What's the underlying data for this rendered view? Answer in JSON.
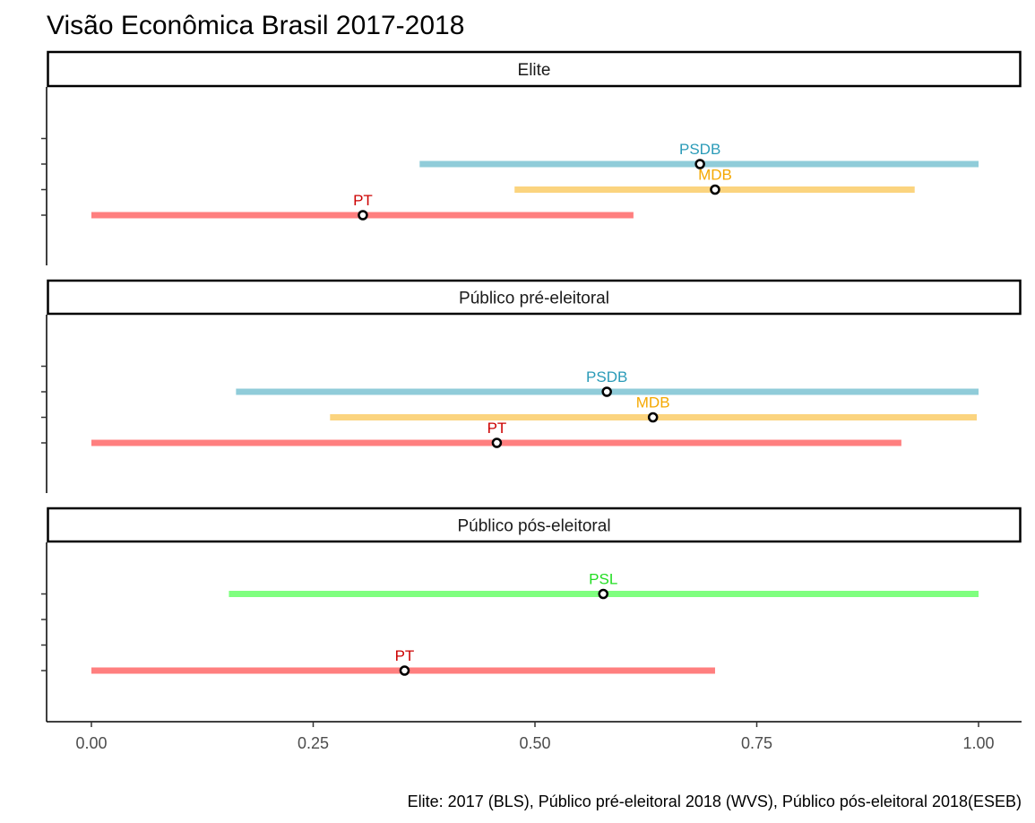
{
  "chart_data": {
    "type": "interval",
    "title": "Visão Econômica Brasil 2017-2018",
    "caption": "Elite: 2017 (BLS), Público pré-eleitoral 2018 (WVS), Público pós-eleitoral 2018(ESEB)",
    "xlim": [
      0,
      1
    ],
    "x_ticks": [
      0,
      0.25,
      0.5,
      0.75,
      1
    ],
    "x_tick_labels": [
      "0.00",
      "0.25",
      "0.50",
      "0.75",
      "1.00"
    ],
    "xlabel": "",
    "ylabel": "",
    "grid": false,
    "legend": "none",
    "colors": {
      "PT": {
        "line": "#ff7f7f",
        "text": "#cc0000"
      },
      "MDB": {
        "line": "#fbd47f",
        "text": "#f5a800"
      },
      "PSDB": {
        "line": "#90ccd9",
        "text": "#2a9bb8"
      },
      "PSL": {
        "line": "#7fff7f",
        "text": "#22dd22"
      }
    },
    "panels": [
      {
        "label": "Elite",
        "rows": 4,
        "series": [
          {
            "party": "PSDB",
            "row": 3,
            "low": 0.37,
            "high": 1.0,
            "estimate": 0.686
          },
          {
            "party": "MDB",
            "row": 2,
            "low": 0.477,
            "high": 0.928,
            "estimate": 0.703
          },
          {
            "party": "PT",
            "row": 1,
            "low": 0.0,
            "high": 0.611,
            "estimate": 0.306
          }
        ]
      },
      {
        "label": "Público pré-eleitoral",
        "rows": 4,
        "series": [
          {
            "party": "PSDB",
            "row": 3,
            "low": 0.163,
            "high": 1.0,
            "estimate": 0.581
          },
          {
            "party": "MDB",
            "row": 2,
            "low": 0.269,
            "high": 0.998,
            "estimate": 0.633
          },
          {
            "party": "PT",
            "row": 1,
            "low": 0.0,
            "high": 0.913,
            "estimate": 0.457
          }
        ]
      },
      {
        "label": "Público pós-eleitoral",
        "rows": 4,
        "series": [
          {
            "party": "PSL",
            "row": 4,
            "low": 0.155,
            "high": 1.0,
            "estimate": 0.577
          },
          {
            "party": "PT",
            "row": 1,
            "low": 0.0,
            "high": 0.703,
            "estimate": 0.353
          }
        ]
      }
    ]
  }
}
